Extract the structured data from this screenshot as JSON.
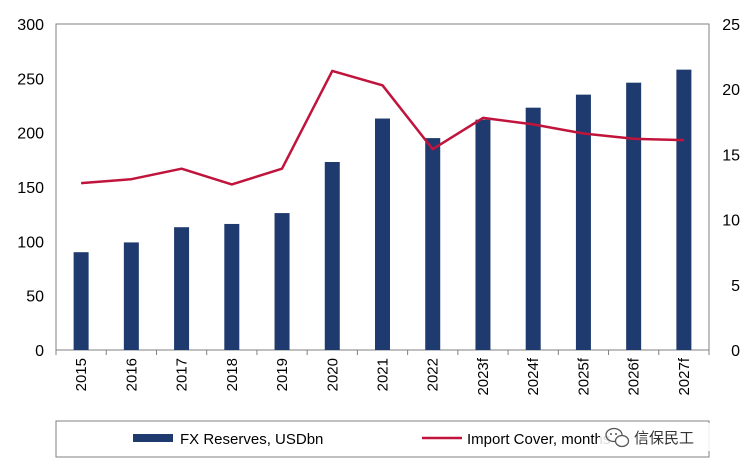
{
  "chart_data": {
    "type": "bar+line",
    "categories": [
      "2015",
      "2016",
      "2017",
      "2018",
      "2019",
      "2020",
      "2021",
      "2022",
      "2023f",
      "2024f",
      "2025f",
      "2026f",
      "2027f"
    ],
    "series": [
      {
        "name": "FX Reserves, USDbn",
        "type": "bar",
        "axis": "left",
        "color": "#1f3a6e",
        "values": [
          90,
          99,
          113,
          116,
          126,
          173,
          213,
          195,
          212,
          223,
          235,
          246,
          258
        ]
      },
      {
        "name": "Import  Cover, months",
        "type": "line",
        "axis": "right",
        "color": "#c0143c",
        "values": [
          12.8,
          13.1,
          13.9,
          12.7,
          13.9,
          21.4,
          20.3,
          15.4,
          17.8,
          17.3,
          16.6,
          16.2,
          16.1
        ]
      }
    ],
    "yleft": {
      "ylim": [
        0,
        300
      ],
      "ticks": [
        "0",
        "50",
        "100",
        "150",
        "200",
        "250",
        "300"
      ]
    },
    "yright": {
      "ylim": [
        0,
        25
      ],
      "ticks": [
        "0",
        "5",
        "10",
        "15",
        "20",
        "25"
      ]
    },
    "grid": false,
    "legend_position": "bottom"
  },
  "watermark": {
    "icon": "wechat-icon",
    "text": "信保民工"
  }
}
